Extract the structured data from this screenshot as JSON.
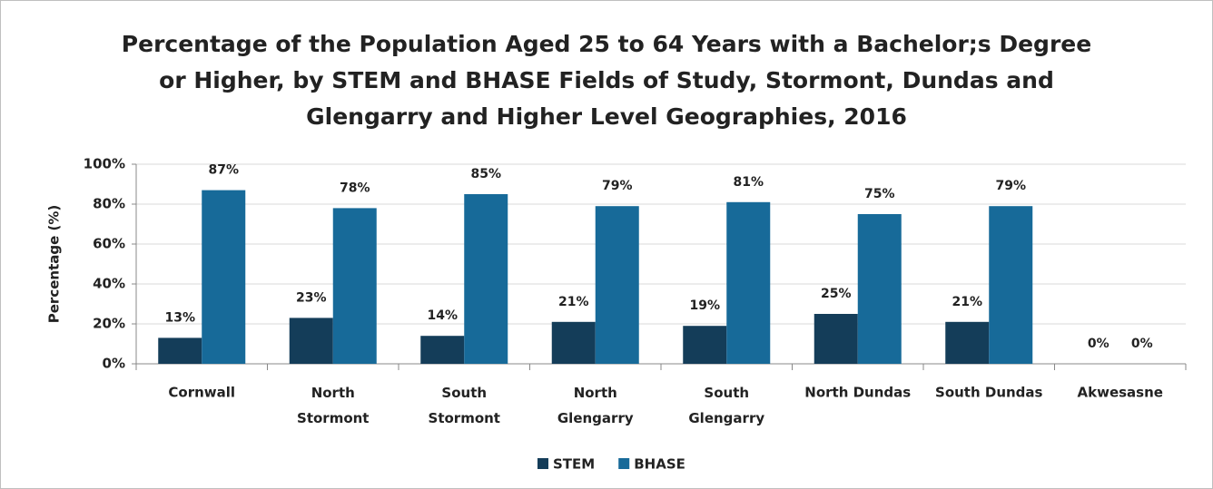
{
  "chart_data": {
    "type": "bar",
    "title": "Percentage of the Population Aged 25 to 64 Years with a Bachelor;s Degree\nor Higher, by STEM and BHASE Fields of Study, Stormont, Dundas and\nGlengarry and Higher Level Geographies, 2016",
    "ylabel": "Percentage (%)",
    "categories": [
      "Cornwall",
      "North\nStormont",
      "South\nStormont",
      "North\nGlengarry",
      "South\nGlengarry",
      "North Dundas",
      "South Dundas",
      "Akwesasne"
    ],
    "series": [
      {
        "name": "STEM",
        "color": "#143d59",
        "values": [
          13,
          23,
          14,
          21,
          19,
          25,
          21,
          0
        ],
        "value_labels": [
          "13%",
          "23%",
          "14%",
          "21%",
          "19%",
          "25%",
          "21%",
          "0%"
        ]
      },
      {
        "name": "BHASE",
        "color": "#176a99",
        "values": [
          87,
          78,
          85,
          79,
          81,
          75,
          79,
          0
        ],
        "value_labels": [
          "87%",
          "78%",
          "85%",
          "79%",
          "81%",
          "75%",
          "79%",
          "0%"
        ]
      }
    ],
    "ylim": [
      0,
      100
    ],
    "yticks": [
      {
        "value": 0,
        "label": "0%"
      },
      {
        "value": 20,
        "label": "20%"
      },
      {
        "value": 40,
        "label": "40%"
      },
      {
        "value": 60,
        "label": "60%"
      },
      {
        "value": 80,
        "label": "80%"
      },
      {
        "value": 100,
        "label": "100%"
      }
    ],
    "grid": true,
    "legend": "bottom"
  }
}
